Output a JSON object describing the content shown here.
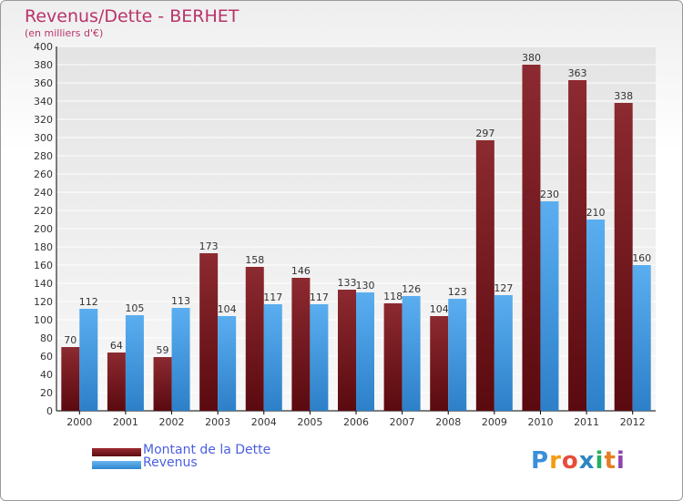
{
  "title": "Revenus/Dette - BERHET",
  "subtitle": "(en milliers d'€)",
  "chart_data": {
    "type": "bar",
    "categories": [
      "2000",
      "2001",
      "2002",
      "2003",
      "2004",
      "2005",
      "2006",
      "2007",
      "2008",
      "2009",
      "2010",
      "2011",
      "2012"
    ],
    "series": [
      {
        "name": "Montant de la Dette",
        "color": "#7a1f24",
        "values": [
          70,
          64,
          59,
          173,
          158,
          146,
          133,
          118,
          104,
          297,
          380,
          363,
          338
        ]
      },
      {
        "name": "Revenus",
        "color": "#4a9fe0",
        "values": [
          112,
          105,
          113,
          104,
          117,
          117,
          130,
          126,
          123,
          127,
          230,
          210,
          160
        ]
      }
    ],
    "ylim": [
      0,
      400
    ],
    "ytick_step": 20,
    "grid": true,
    "legend_position": "bottom-left"
  },
  "legend": {
    "debt_label": "Montant de la Dette",
    "revenue_label": "Revenus"
  },
  "logo": {
    "letters": [
      "P",
      "r",
      "o",
      "x",
      "i",
      "t",
      "i"
    ],
    "colors": [
      "#3a8fd8",
      "#f39c12",
      "#e74c3c",
      "#2e86c1",
      "#27ae60",
      "#e67e22",
      "#8e44ad"
    ]
  }
}
